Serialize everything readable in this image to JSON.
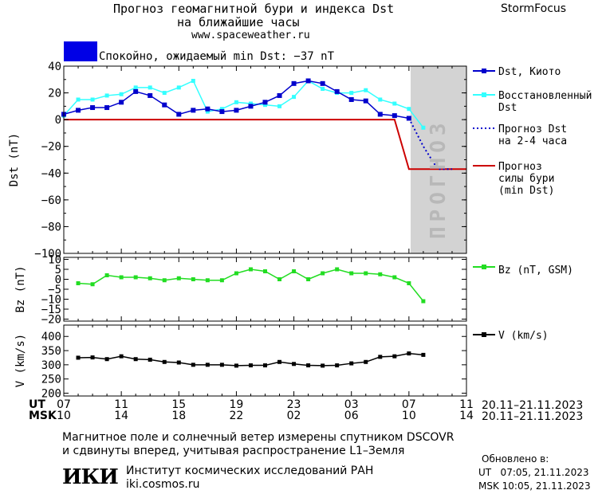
{
  "header": {
    "title_line1": "Прогноз геомагнитной бури и индекса Dst",
    "title_line2": "на ближайшие часы",
    "site": "www.spaceweather.ru",
    "brand": "StormFocus"
  },
  "status": {
    "text": "Спокойно, ожидаемый min Dst: −37 nT",
    "color": "#0000e6"
  },
  "colors": {
    "dst_kyoto": "#0000cc",
    "dst_restored": "#33ffff",
    "forecast_dots": "#0000cc",
    "storm_forecast": "#cc0000",
    "bz": "#22dd22",
    "v": "#000000",
    "forecast_band": "#d3d3d3"
  },
  "chart_data": [
    {
      "type": "line",
      "name": "dst-panel",
      "ylabel": "Dst (nT)",
      "ylim": [
        -100,
        40
      ],
      "yticks": [
        40,
        20,
        0,
        -20,
        -40,
        -60,
        -80,
        -100
      ],
      "forecast_label": "ПРОГНОЗ",
      "series": [
        {
          "name": "Dst, Киото",
          "x": [
            7,
            8,
            9,
            10,
            11,
            12,
            13,
            14,
            15,
            16,
            17,
            18,
            19,
            20,
            21,
            22,
            23,
            24,
            25,
            26,
            27,
            28,
            29,
            30,
            31
          ],
          "values": [
            4,
            7,
            9,
            9,
            13,
            21,
            18,
            11,
            4,
            7,
            8,
            6,
            7,
            10,
            13,
            18,
            27,
            29,
            27,
            21,
            15,
            14,
            4,
            3,
            1
          ]
        },
        {
          "name": "Восстановленный Dst",
          "x": [
            7,
            8,
            9,
            10,
            11,
            12,
            13,
            14,
            15,
            16,
            17,
            18,
            19,
            20,
            21,
            22,
            23,
            24,
            25,
            26,
            27,
            28,
            29,
            30,
            31,
            32
          ],
          "values": [
            3,
            15,
            15,
            18,
            19,
            24,
            24,
            20,
            24,
            29,
            6,
            8,
            13,
            12,
            11,
            10,
            17,
            29,
            23,
            20,
            20,
            22,
            15,
            12,
            8,
            -6
          ]
        },
        {
          "name": "Прогноз Dst на 2-4 часа",
          "x": [
            31,
            32,
            33,
            34
          ],
          "values": [
            1,
            -20,
            -37,
            -37
          ]
        },
        {
          "name": "Прогноз силы бури (min Dst)",
          "x": [
            7,
            30,
            31,
            35
          ],
          "values": [
            0,
            0,
            -37,
            -37
          ]
        }
      ],
      "legend": {
        "dst_kyoto": [
          "Dst, Киото"
        ],
        "dst_restored": [
          "Восстановленный",
          "Dst"
        ],
        "dst_forecast": [
          "Прогноз Dst",
          "на 2-4 часа"
        ],
        "storm_forecast": [
          "Прогноз",
          "силы бури",
          "(min Dst)"
        ]
      }
    },
    {
      "type": "line",
      "name": "bz-panel",
      "ylabel": "Bz (nT)",
      "ylim": [
        -21,
        11
      ],
      "yticks": [
        10,
        5,
        0,
        -5,
        -10,
        -15,
        -20
      ],
      "series": [
        {
          "name": "Bz (nT, GSM)",
          "x": [
            8,
            9,
            10,
            11,
            12,
            13,
            14,
            15,
            16,
            17,
            18,
            19,
            20,
            21,
            22,
            23,
            24,
            25,
            26,
            27,
            28,
            29,
            30,
            31,
            32
          ],
          "values": [
            -2,
            -2.5,
            2,
            1,
            1,
            0.5,
            -0.5,
            0.5,
            0,
            -0.5,
            -0.5,
            3,
            5,
            4,
            0,
            4,
            0,
            3,
            5,
            3,
            3,
            2.5,
            1,
            -2,
            -11
          ]
        }
      ],
      "legend": "Bz (nT, GSM)"
    },
    {
      "type": "line",
      "name": "v-panel",
      "ylabel": "V (km/s)",
      "ylim": [
        190,
        440
      ],
      "yticks": [
        400,
        350,
        300,
        250,
        200
      ],
      "series": [
        {
          "name": "V (km/s)",
          "x": [
            8,
            9,
            10,
            11,
            12,
            13,
            14,
            15,
            16,
            17,
            18,
            19,
            20,
            21,
            22,
            23,
            24,
            25,
            26,
            27,
            28,
            29,
            30,
            31,
            32
          ],
          "values": [
            325,
            326,
            320,
            330,
            320,
            318,
            310,
            308,
            300,
            300,
            300,
            297,
            298,
            298,
            310,
            303,
            298,
            297,
            298,
            305,
            310,
            328,
            330,
            340,
            335
          ]
        }
      ],
      "legend": "V (km/s)"
    }
  ],
  "x_axis": {
    "xlim": [
      7,
      35
    ],
    "ticks": [
      7,
      11,
      15,
      19,
      23,
      27,
      31,
      35
    ],
    "ut_label": "UT",
    "msk_label": "MSK",
    "ut_ticks": [
      "07",
      "11",
      "15",
      "19",
      "23",
      "03",
      "07",
      "11"
    ],
    "msk_ticks": [
      "10",
      "14",
      "18",
      "22",
      "02",
      "06",
      "10",
      "14"
    ],
    "ut_range": "20.11–21.11.2023",
    "msk_range": "20.11–21.11.2023"
  },
  "footer": {
    "note_line1": "Магнитное поле и солнечный ветер измерены спутником DSCOVR",
    "note_line2": "и сдвинуты вперед, учитывая распространение L1–Земля",
    "institute_logo": "ИКИ",
    "institute_name": "Институт космических исследований РАН",
    "institute_site": "iki.cosmos.ru",
    "updated_label": "Обновлено в:",
    "updated_ut": "UT   07:05, 21.11.2023",
    "updated_msk": "MSK 10:05, 21.11.2023"
  }
}
